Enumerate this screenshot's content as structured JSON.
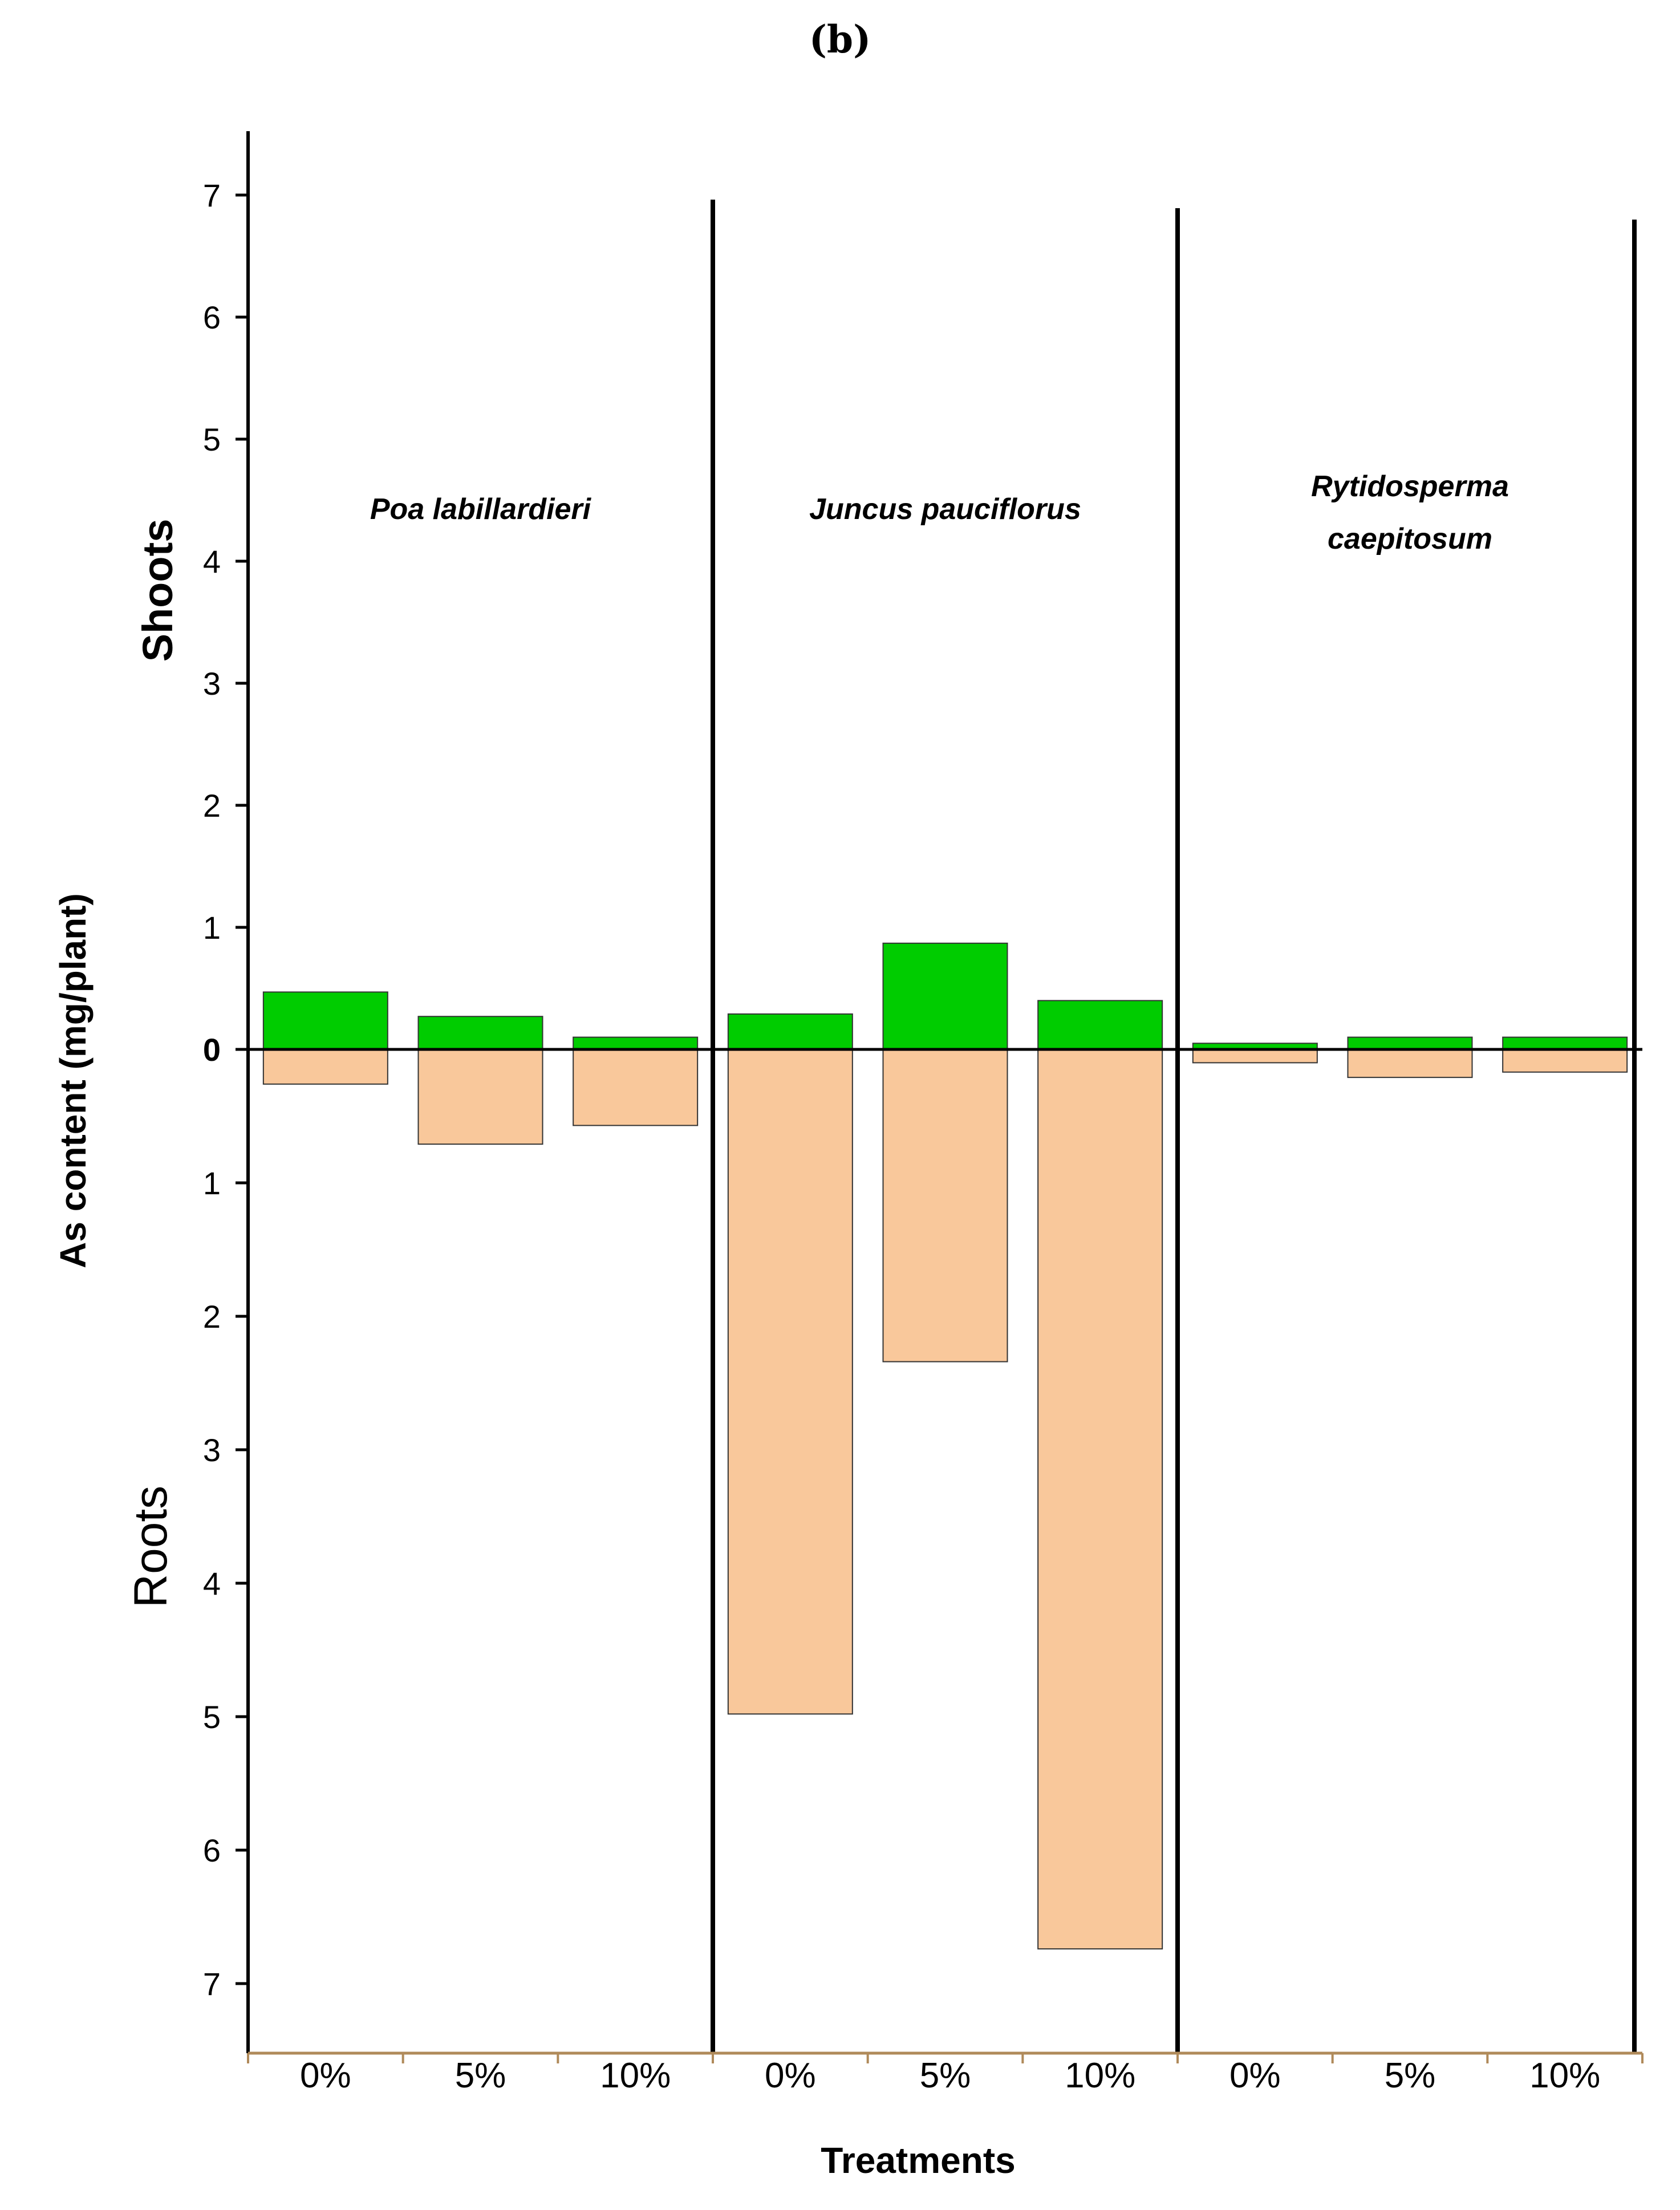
{
  "panel_label": "(b)",
  "chart_data": {
    "type": "bar",
    "title": "",
    "xlabel": "Treatments",
    "ylabel": "As content (mg/plant)",
    "upper_region_label": "Shoots",
    "lower_region_label": "Roots",
    "ylim_shoots": [
      0,
      7.5
    ],
    "ylim_roots": [
      0,
      7.5
    ],
    "y_ticks_shoots": [
      0,
      1,
      2,
      3,
      4,
      5,
      6,
      7
    ],
    "y_ticks_roots": [
      1,
      2,
      3,
      4,
      5,
      6,
      7
    ],
    "groups": [
      {
        "species_line1": "Poa labillardieri",
        "species_line2": "",
        "categories": [
          "0%",
          "5%",
          "10%"
        ],
        "shoots": [
          0.47,
          0.27,
          0.1
        ],
        "roots": [
          0.26,
          0.71,
          0.57
        ]
      },
      {
        "species_line1": "Juncus pauciflorus",
        "species_line2": "",
        "categories": [
          "0%",
          "5%",
          "10%"
        ],
        "shoots": [
          0.29,
          0.87,
          0.4
        ],
        "roots": [
          4.98,
          2.34,
          6.74
        ]
      },
      {
        "species_line1": "Rytidosperma",
        "species_line2": "caepitosum",
        "categories": [
          "0%",
          "5%",
          "10%"
        ],
        "shoots": [
          0.05,
          0.1,
          0.1
        ],
        "roots": [
          0.1,
          0.21,
          0.17
        ]
      }
    ],
    "series": [
      {
        "name": "Shoots",
        "color": "#00cc00"
      },
      {
        "name": "Roots",
        "color": "#f9c89b"
      }
    ],
    "axis_color": "#b08a5a"
  }
}
